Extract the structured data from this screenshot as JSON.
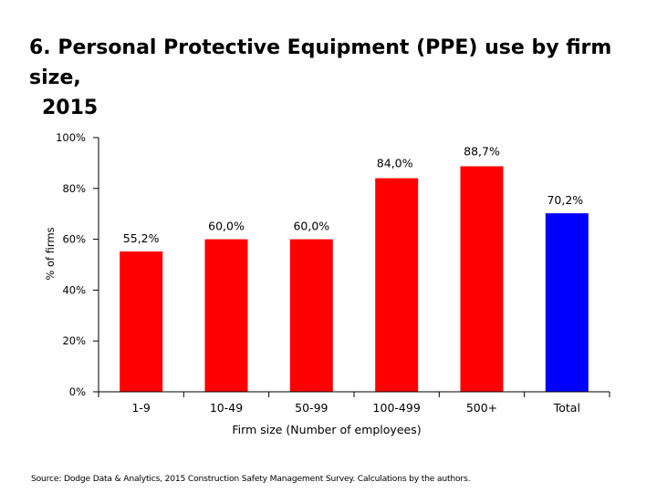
{
  "title_line1": "6. Personal Protective Equipment (PPE) use by firm size,",
  "title_line2": "2015",
  "source": "Source: Dodge Data & Analytics, 2015 Construction Safety Management Survey. Calculations by the authors.",
  "colors": {
    "bar": "#ff0000",
    "total_bar": "#0000ff",
    "axis": "#000000"
  },
  "chart_data": {
    "type": "bar",
    "title": "6. Personal Protective Equipment (PPE) use by firm size, 2015",
    "xlabel": "Firm size (Number of employees)",
    "ylabel": "% of firms",
    "ylim": [
      0,
      100
    ],
    "yticks": [
      0,
      20,
      40,
      60,
      80,
      100
    ],
    "ytick_labels": [
      "0%",
      "20%",
      "40%",
      "60%",
      "80%",
      "100%"
    ],
    "categories": [
      "1-9",
      "10-49",
      "50-99",
      "100-499",
      "500+",
      "Total"
    ],
    "values": [
      55.2,
      60.0,
      60.0,
      84.0,
      88.7,
      70.2
    ],
    "value_labels": [
      "55,2%",
      "60,0%",
      "60,0%",
      "84,0%",
      "88,7%",
      "70,2%"
    ],
    "grid": false,
    "legend": "none"
  }
}
